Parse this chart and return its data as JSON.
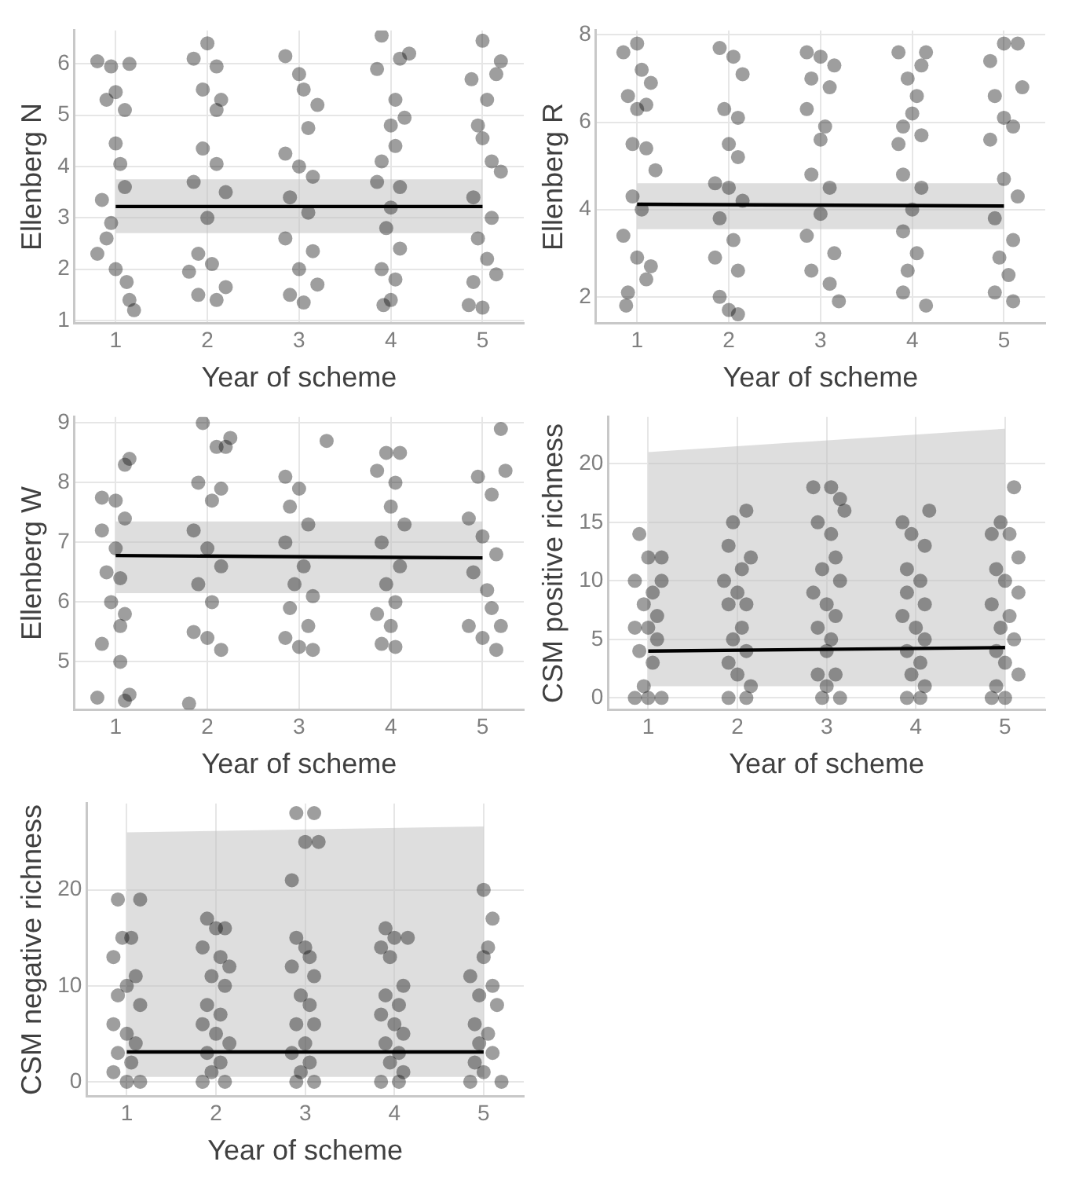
{
  "chart_data": [
    {
      "type": "scatter",
      "xlabel": "Year of scheme",
      "ylabel": "Ellenberg N",
      "xlim": [
        0.55,
        5.45
      ],
      "xticks": [
        1,
        2,
        3,
        4,
        5
      ],
      "ylim": [
        0.95,
        6.65
      ],
      "yticks": [
        1,
        2,
        3,
        4,
        5,
        6
      ],
      "grid": true,
      "marker": "circle",
      "series": [
        {
          "type": "scatter",
          "color": "#000000",
          "x": [
            0.8,
            0.95,
            1.15,
            0.9,
            1.0,
            1.1,
            1.0,
            1.05,
            0.85,
            1.1,
            0.95,
            0.8,
            1.0,
            1.12,
            1.15,
            1.2,
            0.9,
            1.85,
            2.0,
            2.1,
            1.95,
            2.15,
            2.1,
            1.95,
            2.1,
            1.85,
            2.2,
            2.0,
            1.9,
            2.05,
            1.8,
            1.9,
            2.1,
            2.2,
            2.85,
            3.0,
            3.05,
            3.2,
            3.1,
            2.85,
            3.0,
            3.15,
            2.9,
            3.1,
            2.85,
            3.15,
            3.0,
            2.9,
            3.05,
            3.2,
            3.9,
            4.1,
            4.2,
            3.85,
            4.05,
            4.15,
            4.0,
            4.05,
            3.9,
            4.1,
            3.85,
            4.0,
            3.95,
            4.1,
            3.9,
            4.05,
            4.0,
            3.92,
            5.0,
            5.2,
            5.15,
            4.88,
            5.05,
            4.95,
            5.0,
            5.1,
            5.2,
            4.9,
            5.1,
            4.95,
            5.05,
            5.15,
            4.9,
            4.85,
            5.0
          ],
          "values": [
            6.05,
            5.95,
            6.0,
            5.3,
            5.45,
            5.1,
            4.45,
            4.05,
            3.35,
            3.6,
            2.9,
            2.3,
            2.0,
            1.75,
            1.4,
            1.2,
            2.6,
            6.1,
            6.4,
            5.95,
            5.5,
            5.3,
            5.1,
            4.35,
            4.05,
            3.7,
            3.5,
            3.0,
            2.3,
            2.1,
            1.95,
            1.5,
            1.4,
            1.65,
            6.15,
            5.8,
            5.5,
            5.2,
            4.75,
            4.25,
            4.0,
            3.8,
            3.4,
            3.1,
            2.6,
            2.35,
            2.0,
            1.5,
            1.35,
            1.7,
            6.55,
            6.1,
            6.2,
            5.9,
            5.3,
            4.95,
            4.8,
            4.4,
            4.1,
            3.6,
            3.7,
            3.2,
            2.8,
            2.4,
            2.0,
            1.8,
            1.4,
            1.3,
            6.45,
            6.05,
            5.8,
            5.7,
            5.3,
            4.8,
            4.55,
            4.1,
            3.9,
            3.4,
            3.0,
            2.6,
            2.2,
            1.9,
            1.75,
            1.3,
            1.25
          ]
        },
        {
          "type": "line",
          "color": "#000000",
          "marker": "none",
          "x": [
            1,
            5
          ],
          "values": [
            3.22,
            3.22
          ],
          "lower": [
            2.7,
            2.7
          ],
          "upper": [
            3.75,
            3.75
          ]
        }
      ]
    },
    {
      "type": "scatter",
      "xlabel": "Year of scheme",
      "ylabel": "Ellenberg R",
      "xlim": [
        0.55,
        5.45
      ],
      "xticks": [
        1,
        2,
        3,
        4,
        5
      ],
      "ylim": [
        1.4,
        8.1
      ],
      "yticks": [
        2,
        4,
        6,
        8
      ],
      "grid": true,
      "marker": "circle",
      "series": [
        {
          "type": "scatter",
          "color": "#000000",
          "x": [
            0.85,
            1.0,
            1.05,
            1.15,
            0.9,
            1.0,
            1.1,
            0.95,
            1.1,
            1.2,
            0.95,
            1.05,
            0.85,
            1.0,
            1.15,
            0.9,
            0.88,
            1.1,
            1.9,
            2.05,
            2.15,
            1.95,
            2.1,
            2.0,
            2.1,
            1.85,
            2.0,
            2.15,
            1.9,
            2.05,
            1.85,
            2.1,
            1.9,
            2.0,
            2.1,
            2.85,
            3.0,
            3.15,
            2.9,
            3.1,
            2.85,
            3.05,
            3.0,
            2.9,
            3.1,
            3.0,
            2.85,
            3.15,
            2.9,
            3.1,
            3.2,
            3.85,
            4.15,
            4.1,
            3.95,
            4.05,
            4.0,
            3.9,
            4.1,
            3.85,
            3.9,
            4.1,
            4.0,
            3.9,
            4.05,
            3.95,
            3.9,
            4.15,
            4.85,
            5.0,
            5.15,
            5.2,
            4.9,
            5.0,
            5.1,
            4.85,
            5.0,
            5.15,
            4.9,
            5.1,
            4.95,
            5.05,
            4.9,
            5.1
          ],
          "values": [
            7.6,
            7.8,
            7.2,
            6.9,
            6.6,
            6.3,
            6.4,
            5.5,
            5.4,
            4.9,
            4.3,
            4.0,
            3.4,
            2.9,
            2.7,
            2.1,
            1.8,
            2.4,
            7.7,
            7.5,
            7.1,
            6.3,
            6.1,
            5.5,
            5.2,
            4.6,
            4.5,
            4.2,
            3.8,
            3.3,
            2.9,
            2.6,
            2.0,
            1.7,
            1.6,
            7.6,
            7.5,
            7.3,
            7.0,
            6.8,
            6.3,
            5.9,
            5.6,
            4.8,
            4.5,
            3.9,
            3.4,
            3.0,
            2.6,
            2.3,
            1.9,
            7.6,
            7.6,
            7.3,
            7.0,
            6.6,
            6.2,
            5.9,
            5.7,
            5.5,
            4.8,
            4.5,
            4.0,
            3.5,
            3.0,
            2.6,
            2.1,
            1.8,
            7.4,
            7.8,
            7.8,
            6.8,
            6.6,
            6.1,
            5.9,
            5.6,
            4.7,
            4.3,
            3.8,
            3.3,
            2.9,
            2.5,
            2.1,
            1.9
          ]
        },
        {
          "type": "line",
          "color": "#000000",
          "marker": "none",
          "x": [
            1,
            5
          ],
          "values": [
            4.12,
            4.08
          ],
          "lower": [
            3.55,
            3.55
          ],
          "upper": [
            4.6,
            4.6
          ]
        }
      ]
    },
    {
      "type": "scatter",
      "xlabel": "Year of scheme",
      "ylabel": "Ellenberg W",
      "xlim": [
        0.55,
        5.45
      ],
      "xticks": [
        1,
        2,
        3,
        4,
        5
      ],
      "ylim": [
        4.2,
        9.1
      ],
      "yticks": [
        5,
        6,
        7,
        8,
        9
      ],
      "grid": true,
      "marker": "circle",
      "series": [
        {
          "type": "scatter",
          "color": "#000000",
          "x": [
            0.85,
            1.0,
            1.1,
            1.15,
            0.85,
            1.0,
            1.1,
            0.9,
            1.05,
            0.95,
            1.1,
            1.05,
            0.85,
            1.05,
            0.8,
            1.1,
            1.15,
            1.95,
            2.1,
            2.2,
            2.25,
            1.9,
            2.05,
            2.15,
            1.85,
            2.0,
            2.15,
            1.9,
            2.05,
            1.85,
            2.0,
            2.15,
            1.8,
            2.85,
            3.0,
            3.3,
            2.9,
            3.1,
            2.85,
            3.05,
            2.95,
            3.15,
            2.9,
            3.1,
            2.85,
            3.0,
            3.15,
            3.95,
            4.1,
            3.85,
            4.05,
            4.0,
            4.15,
            3.9,
            4.1,
            3.95,
            4.05,
            3.85,
            4.0,
            3.9,
            4.05,
            5.2,
            5.25,
            4.95,
            5.1,
            4.85,
            5.0,
            5.15,
            4.9,
            5.05,
            5.1,
            4.85,
            5.0,
            5.15,
            5.2
          ],
          "values": [
            7.75,
            7.7,
            8.3,
            8.4,
            7.2,
            6.9,
            7.4,
            6.5,
            6.4,
            6.0,
            5.8,
            5.6,
            5.3,
            5.0,
            4.4,
            4.35,
            4.45,
            9.0,
            8.6,
            8.6,
            8.75,
            8.0,
            7.7,
            7.9,
            7.2,
            6.9,
            6.6,
            6.3,
            6.0,
            5.5,
            5.4,
            5.2,
            4.3,
            8.1,
            7.9,
            8.7,
            7.6,
            7.3,
            7.0,
            6.6,
            6.3,
            6.1,
            5.9,
            5.6,
            5.4,
            5.25,
            5.2,
            8.5,
            8.5,
            8.2,
            8.0,
            7.6,
            7.3,
            7.0,
            6.6,
            6.3,
            6.0,
            5.8,
            5.6,
            5.3,
            5.25,
            8.9,
            8.2,
            8.1,
            7.8,
            7.4,
            7.1,
            6.8,
            6.5,
            6.2,
            5.9,
            5.6,
            5.4,
            5.2,
            5.6
          ]
        },
        {
          "type": "line",
          "color": "#000000",
          "marker": "none",
          "x": [
            1,
            5
          ],
          "values": [
            6.78,
            6.74
          ],
          "lower": [
            6.15,
            6.15
          ],
          "upper": [
            7.35,
            7.35
          ]
        }
      ]
    },
    {
      "type": "scatter",
      "xlabel": "Year of scheme",
      "ylabel": "CSM positive richness",
      "xlim": [
        0.55,
        5.45
      ],
      "xticks": [
        1,
        2,
        3,
        4,
        5
      ],
      "ylim": [
        -1,
        24
      ],
      "yticks": [
        0,
        5,
        10,
        15,
        20
      ],
      "grid": true,
      "marker": "circle",
      "series": [
        {
          "type": "scatter",
          "color": "#000000",
          "x": [
            0.9,
            1.0,
            1.15,
            0.85,
            1.05,
            1.15,
            0.95,
            1.1,
            0.85,
            1.0,
            1.1,
            0.9,
            1.05,
            0.95,
            1.0,
            0.85,
            1.15,
            2.1,
            1.95,
            1.9,
            2.15,
            2.05,
            1.85,
            2.0,
            2.1,
            1.9,
            2.05,
            1.95,
            2.1,
            1.9,
            2.0,
            2.15,
            1.9,
            2.1,
            2.85,
            3.05,
            3.15,
            3.2,
            2.9,
            3.05,
            3.1,
            2.95,
            3.15,
            2.85,
            3.0,
            3.1,
            2.9,
            3.05,
            3.0,
            2.9,
            3.1,
            3.0,
            2.95,
            3.15,
            3.85,
            4.15,
            3.95,
            4.1,
            3.9,
            4.05,
            3.9,
            4.1,
            3.85,
            4.0,
            4.1,
            3.9,
            4.05,
            3.95,
            4.1,
            3.9,
            4.05,
            5.1,
            4.95,
            4.85,
            5.05,
            5.15,
            4.9,
            5.0,
            5.15,
            4.85,
            5.05,
            4.95,
            5.1,
            4.9,
            5.0,
            5.15,
            4.9,
            5.0,
            4.85
          ],
          "values": [
            14,
            12,
            12,
            10,
            9,
            10,
            8,
            7,
            6,
            6,
            5,
            4,
            3,
            1,
            0,
            0,
            0,
            16,
            15,
            13,
            12,
            11,
            10,
            9,
            8,
            8,
            6,
            5,
            4,
            3,
            2,
            1,
            0,
            0,
            18,
            18,
            17,
            16,
            15,
            14,
            12,
            11,
            10,
            9,
            8,
            7,
            6,
            5,
            4,
            2,
            2,
            1,
            0,
            0,
            15,
            16,
            14,
            13,
            11,
            10,
            9,
            8,
            7,
            6,
            5,
            4,
            3,
            2,
            1,
            0,
            0,
            18,
            15,
            14,
            14,
            12,
            11,
            10,
            9,
            8,
            7,
            6,
            5,
            4,
            3,
            2,
            1,
            0,
            0
          ]
        },
        {
          "type": "line",
          "color": "#000000",
          "marker": "none",
          "x": [
            1,
            5
          ],
          "values": [
            4.0,
            4.3
          ],
          "lower": [
            1,
            1
          ],
          "upper": [
            21,
            23
          ]
        }
      ]
    },
    {
      "type": "scatter",
      "xlabel": "Year of scheme",
      "ylabel": "CSM negative richness",
      "xlim": [
        0.55,
        5.45
      ],
      "xticks": [
        1,
        2,
        3,
        4,
        5
      ],
      "ylim": [
        -1.5,
        29
      ],
      "yticks": [
        0,
        10,
        20
      ],
      "grid": true,
      "marker": "circle",
      "series": [
        {
          "type": "scatter",
          "color": "#000000",
          "x": [
            0.9,
            1.15,
            0.85,
            0.95,
            1.05,
            1.1,
            1.0,
            0.9,
            1.15,
            0.85,
            1.0,
            1.1,
            0.9,
            1.05,
            0.85,
            1.0,
            1.15,
            1.9,
            2.0,
            2.1,
            1.85,
            2.05,
            2.15,
            1.95,
            2.1,
            1.9,
            2.05,
            1.85,
            2.0,
            2.15,
            1.9,
            2.05,
            1.95,
            1.85,
            2.1,
            2.9,
            3.1,
            3.0,
            3.15,
            2.85,
            2.9,
            3.0,
            2.85,
            3.05,
            3.1,
            2.95,
            3.05,
            2.9,
            3.1,
            3.0,
            2.85,
            3.05,
            2.95,
            3.1,
            2.9,
            3.9,
            4.0,
            4.15,
            3.85,
            3.95,
            4.1,
            3.9,
            4.05,
            3.85,
            4.0,
            4.1,
            3.9,
            4.05,
            3.95,
            4.1,
            3.85,
            4.05,
            5.0,
            5.1,
            5.05,
            5.0,
            4.85,
            5.1,
            4.95,
            5.15,
            4.9,
            5.05,
            4.95,
            5.1,
            4.9,
            5.0,
            5.2,
            4.85
          ],
          "values": [
            19,
            19,
            13,
            15,
            15,
            11,
            10,
            9,
            8,
            6,
            5,
            4,
            3,
            2,
            1,
            0,
            0,
            17,
            16,
            16,
            14,
            13,
            12,
            11,
            10,
            8,
            7,
            6,
            5,
            4,
            3,
            2,
            1,
            0,
            0,
            28,
            28,
            25,
            25,
            21,
            15,
            14,
            12,
            13,
            11,
            9,
            8,
            6,
            6,
            4,
            3,
            2,
            1,
            0,
            0,
            16,
            15,
            15,
            14,
            13,
            10,
            9,
            8,
            7,
            6,
            5,
            4,
            3,
            2,
            1,
            0,
            0,
            20,
            17,
            14,
            13,
            11,
            10,
            9,
            8,
            6,
            5,
            4,
            3,
            2,
            1,
            0,
            0
          ]
        },
        {
          "type": "line",
          "color": "#000000",
          "marker": "none",
          "x": [
            1,
            5
          ],
          "values": [
            3.1,
            3.1
          ],
          "lower": [
            0.5,
            0.5
          ],
          "upper": [
            26,
            26.6
          ]
        }
      ]
    }
  ]
}
